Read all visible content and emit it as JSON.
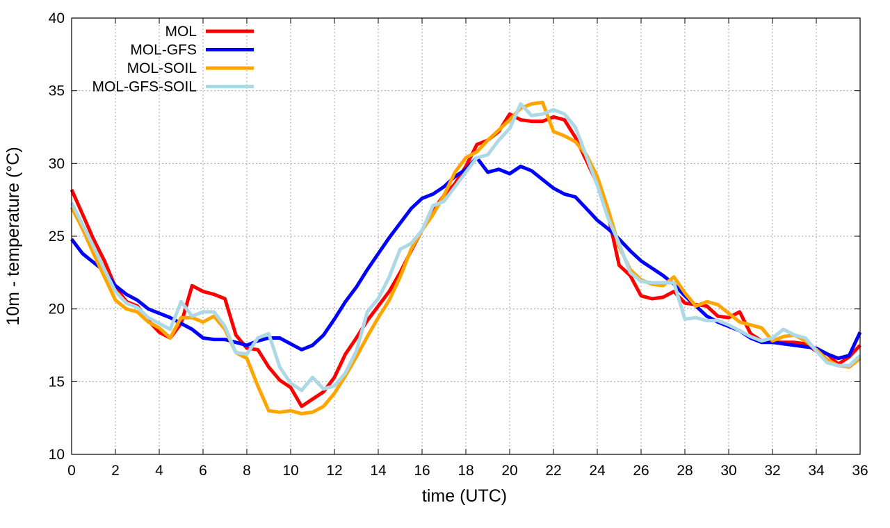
{
  "chart_data": {
    "type": "line",
    "title": "",
    "xlabel": "time (UTC)",
    "ylabel": "10m - temperature (°C)",
    "xlim": [
      0,
      36
    ],
    "ylim": [
      10,
      40
    ],
    "grid": true,
    "legend_position": "top-left",
    "xticks": [
      0,
      2,
      4,
      6,
      8,
      10,
      12,
      14,
      16,
      18,
      20,
      22,
      24,
      26,
      28,
      30,
      32,
      34,
      36
    ],
    "yticks": [
      10,
      15,
      20,
      25,
      30,
      35,
      40
    ],
    "x": [
      0,
      0.5,
      1,
      1.5,
      2,
      2.5,
      3,
      3.5,
      4,
      4.5,
      5,
      5.5,
      6,
      6.5,
      7,
      7.5,
      8,
      8.5,
      9,
      9.5,
      10,
      10.5,
      11,
      11.5,
      12,
      12.5,
      13,
      13.5,
      14,
      14.5,
      15,
      15.5,
      16,
      16.5,
      17,
      17.5,
      18,
      18.5,
      19,
      19.5,
      20,
      20.5,
      21,
      21.5,
      22,
      22.5,
      23,
      23.5,
      24,
      24.5,
      25,
      25.5,
      26,
      26.5,
      27,
      27.5,
      28,
      28.5,
      29,
      29.5,
      30,
      30.5,
      31,
      31.5,
      32,
      32.5,
      33,
      33.5,
      34,
      34.5,
      35,
      35.5,
      36
    ],
    "series": [
      {
        "name": "MOL",
        "color": "#ff0000",
        "values": [
          28.2,
          26.5,
          24.8,
          23.3,
          21.5,
          20.5,
          20.2,
          19.2,
          18.4,
          18.0,
          19.0,
          21.6,
          21.2,
          21.0,
          20.7,
          18.2,
          17.3,
          17.2,
          16.0,
          15.1,
          14.6,
          13.3,
          13.8,
          14.3,
          15.3,
          16.9,
          18.0,
          19.2,
          20.2,
          21.2,
          22.5,
          24.0,
          25.4,
          26.8,
          27.8,
          28.6,
          29.8,
          31.3,
          31.6,
          32.2,
          33.4,
          33.0,
          32.9,
          32.9,
          33.2,
          33.0,
          31.8,
          30.2,
          28.6,
          26.4,
          23.0,
          22.3,
          20.9,
          20.7,
          20.8,
          21.2,
          20.4,
          20.3,
          20.2,
          19.5,
          19.4,
          19.8,
          18.3,
          17.8,
          17.7,
          17.7,
          17.7,
          17.6,
          17.1,
          16.9,
          16.2,
          16.7,
          17.5
        ]
      },
      {
        "name": "MOL-GFS",
        "color": "#0000ff",
        "values": [
          24.8,
          23.8,
          23.2,
          22.6,
          21.6,
          21.0,
          20.6,
          20.0,
          19.7,
          19.4,
          19.0,
          18.6,
          18.0,
          17.9,
          17.9,
          17.7,
          17.5,
          17.8,
          18.0,
          18.0,
          17.6,
          17.2,
          17.5,
          18.2,
          19.3,
          20.5,
          21.5,
          22.7,
          23.8,
          24.9,
          25.9,
          26.9,
          27.6,
          27.9,
          28.4,
          29.1,
          29.6,
          30.4,
          29.4,
          29.6,
          29.3,
          29.8,
          29.5,
          28.9,
          28.3,
          27.9,
          27.7,
          26.9,
          26.1,
          25.5,
          24.8,
          24.0,
          23.3,
          22.8,
          22.3,
          21.7,
          20.9,
          20.2,
          19.5,
          19.1,
          18.8,
          18.5,
          18.0,
          17.7,
          17.7,
          17.6,
          17.5,
          17.4,
          17.3,
          16.9,
          16.6,
          16.8,
          18.4
        ]
      },
      {
        "name": "MOL-SOIL",
        "color": "#ffa500",
        "values": [
          27.0,
          25.5,
          23.8,
          22.2,
          20.6,
          20.0,
          19.8,
          19.1,
          18.7,
          18.0,
          19.4,
          19.4,
          19.1,
          19.5,
          18.6,
          17.0,
          16.6,
          14.7,
          13.0,
          12.9,
          13.0,
          12.8,
          12.9,
          13.3,
          14.2,
          15.4,
          16.7,
          18.1,
          19.4,
          20.6,
          22.2,
          24.1,
          25.4,
          26.5,
          27.8,
          29.4,
          30.4,
          30.8,
          31.6,
          32.3,
          33.0,
          33.8,
          34.1,
          34.2,
          32.2,
          31.9,
          31.5,
          30.6,
          29.1,
          26.8,
          24.3,
          22.7,
          22.0,
          21.7,
          21.6,
          22.2,
          21.1,
          20.2,
          20.5,
          20.3,
          19.7,
          19.1,
          18.9,
          18.7,
          17.8,
          18.1,
          18.2,
          17.8,
          17.2,
          16.5,
          16.1,
          16.0,
          16.6
        ]
      },
      {
        "name": "MOL-GFS-SOIL",
        "color": "#add8e6",
        "values": [
          27.3,
          25.8,
          24.3,
          22.7,
          21.2,
          20.4,
          20.1,
          19.4,
          19.0,
          18.6,
          20.5,
          19.5,
          19.8,
          19.8,
          18.8,
          17.0,
          16.9,
          18.0,
          18.3,
          16.0,
          14.9,
          14.4,
          15.3,
          14.5,
          14.7,
          15.6,
          17.1,
          19.8,
          20.7,
          22.2,
          24.1,
          24.5,
          25.4,
          27.1,
          27.4,
          28.4,
          29.4,
          30.4,
          30.6,
          31.6,
          32.4,
          34.1,
          33.3,
          33.4,
          33.7,
          33.4,
          32.5,
          30.5,
          28.5,
          26.2,
          24.5,
          22.5,
          21.9,
          21.8,
          21.8,
          21.8,
          19.3,
          19.4,
          19.2,
          19.2,
          18.9,
          18.5,
          18.1,
          17.8,
          18.0,
          18.6,
          18.2,
          18.0,
          17.1,
          16.3,
          16.1,
          16.1,
          16.8
        ]
      }
    ]
  }
}
